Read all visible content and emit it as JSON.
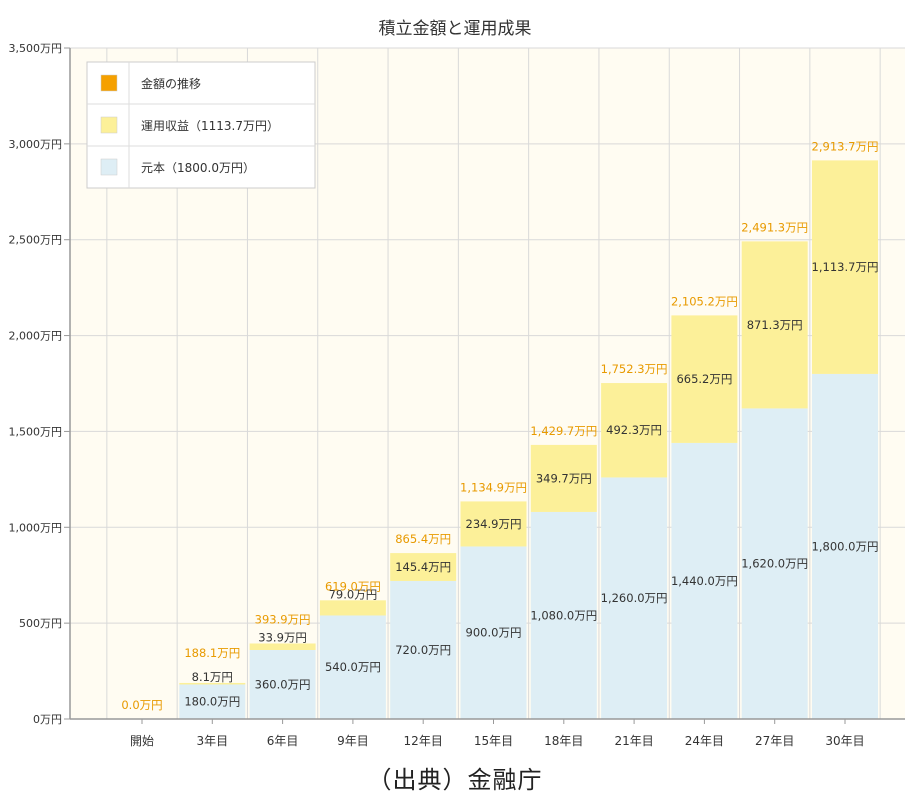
{
  "source": "（出典）金融庁",
  "chart_data": {
    "type": "bar",
    "stacked": true,
    "title": "積立金額と運用成果",
    "xlabel": "",
    "ylabel": "",
    "ylim": [
      0,
      3500
    ],
    "yticks": [
      0,
      500,
      1000,
      1500,
      2000,
      2500,
      3000,
      3500
    ],
    "ytick_labels": [
      "0万円",
      "500万円",
      "1,000万円",
      "1,500万円",
      "2,000万円",
      "2,500万円",
      "3,000万円",
      "3,500万円"
    ],
    "categories": [
      "開始",
      "3年目",
      "6年目",
      "9年目",
      "12年目",
      "15年目",
      "18年目",
      "21年目",
      "24年目",
      "27年目",
      "30年目"
    ],
    "series": [
      {
        "name": "元本（1800.0万円）",
        "color": "#deeef5",
        "values": [
          0,
          180.0,
          360.0,
          540.0,
          720.0,
          900.0,
          1080.0,
          1260.0,
          1440.0,
          1620.0,
          1800.0
        ],
        "labels": [
          "",
          "180.0万円",
          "360.0万円",
          "540.0万円",
          "720.0万円",
          "900.0万円",
          "1,080.0万円",
          "1,260.0万円",
          "1,440.0万円",
          "1,620.0万円",
          "1,800.0万円"
        ]
      },
      {
        "name": "運用収益（1113.7万円）",
        "color": "#fcf099",
        "values": [
          0,
          8.1,
          33.9,
          79.0,
          145.4,
          234.9,
          349.7,
          492.3,
          665.2,
          871.3,
          1113.7
        ],
        "labels": [
          "",
          "8.1万円",
          "33.9万円",
          "79.0万円",
          "145.4万円",
          "234.9万円",
          "349.7万円",
          "492.3万円",
          "665.2万円",
          "871.3万円",
          "1,113.7万円"
        ]
      }
    ],
    "totals": {
      "name": "金額の推移",
      "color": "#f5a000",
      "values": [
        0.0,
        188.1,
        393.9,
        619.0,
        865.4,
        1134.9,
        1429.7,
        1752.3,
        2105.2,
        2491.3,
        2913.7
      ],
      "labels": [
        "0.0万円",
        "188.1万円",
        "393.9万円",
        "619.0万円",
        "865.4万円",
        "1,134.9万円",
        "1,429.7万円",
        "1,752.3万円",
        "2,105.2万円",
        "2,491.3万円",
        "2,913.7万円"
      ]
    },
    "legend": {
      "position": "top-left",
      "entries": [
        {
          "label": "金額の推移",
          "color": "#f5a000"
        },
        {
          "label": "運用収益（1113.7万円）",
          "color": "#fcf099"
        },
        {
          "label": "元本（1800.0万円）",
          "color": "#deeef5"
        }
      ]
    },
    "grid": true,
    "colors": {
      "plot_background": "#fffcf2",
      "grid": "#d9d9d9",
      "axis": "#999999",
      "total_label": "#e89a00",
      "segment_label": "#333333"
    }
  }
}
